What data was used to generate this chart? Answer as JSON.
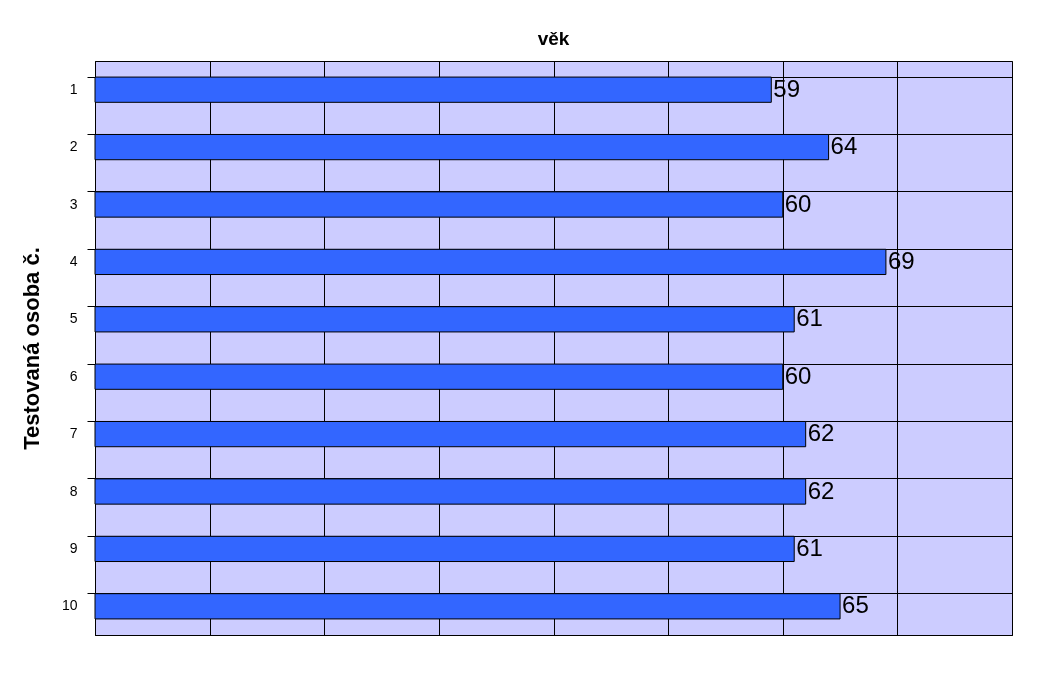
{
  "chart_data": {
    "type": "bar",
    "orientation": "horizontal",
    "title": "věk",
    "ylabel": "Testovaná osoba č.",
    "categories": [
      "1",
      "2",
      "3",
      "4",
      "5",
      "6",
      "7",
      "8",
      "9",
      "10"
    ],
    "values": [
      59,
      64,
      60,
      69,
      61,
      60,
      62,
      62,
      61,
      65
    ],
    "color": "#3366ff",
    "data_labels": true,
    "xlim": [
      0,
      80
    ],
    "xticks": [
      {
        "value": 0,
        "label": null
      },
      {
        "value": 10,
        "label": null
      },
      {
        "value": 20,
        "label": null
      },
      {
        "value": 30,
        "label": null
      },
      {
        "value": 40,
        "label": null
      },
      {
        "value": 50,
        "label": null
      },
      {
        "value": 60,
        "label": null
      },
      {
        "value": 70,
        "label": null
      },
      {
        "value": 80,
        "label": null
      }
    ],
    "grid": true,
    "tick_labels": "y"
  }
}
